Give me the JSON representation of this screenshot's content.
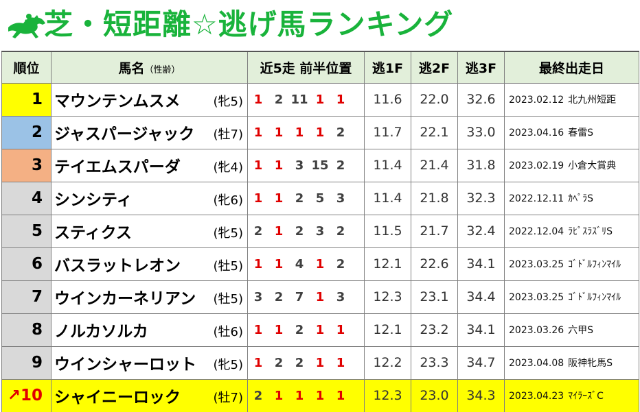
{
  "title": "芝・短距離☆逃げ馬ランキング",
  "icon": "running-horse-icon",
  "colors": {
    "title": "#19b33b",
    "header_bg": "#e2efda",
    "rank1": "#ffff00",
    "rank2": "#9bc2e6",
    "rank3": "#f4b084",
    "highlight": "#ffff00",
    "pos_red": "#e00000"
  },
  "headers": {
    "rank": "順位",
    "name": "馬名",
    "name_sub": "（性齢）",
    "positions": "近5走 前半位置",
    "f1": "逃1F",
    "f2": "逃2F",
    "f3": "逃3F",
    "last_race": "最終出走日"
  },
  "rows": [
    {
      "rank": "1",
      "arrow": "",
      "name": "マウンテンムスメ",
      "sexage": "(牝5)",
      "positions": [
        "1",
        "2",
        "11",
        "1",
        "1"
      ],
      "f1": "11.6",
      "f2": "22.0",
      "f3": "32.6",
      "date": "2023.02.12",
      "race": "北九州短距"
    },
    {
      "rank": "2",
      "arrow": "",
      "name": "ジャスパージャック",
      "sexage": "(牡7)",
      "positions": [
        "1",
        "1",
        "1",
        "1",
        "2"
      ],
      "f1": "11.7",
      "f2": "22.1",
      "f3": "33.0",
      "date": "2023.04.16",
      "race": "春雷S"
    },
    {
      "rank": "3",
      "arrow": "",
      "name": "テイエムスパーダ",
      "sexage": "(牝4)",
      "positions": [
        "1",
        "1",
        "3",
        "15",
        "2"
      ],
      "f1": "11.4",
      "f2": "21.4",
      "f3": "31.8",
      "date": "2023.02.19",
      "race": "小倉大賞典"
    },
    {
      "rank": "4",
      "arrow": "",
      "name": "シンシティ",
      "sexage": "(牝6)",
      "positions": [
        "1",
        "1",
        "2",
        "5",
        "3"
      ],
      "f1": "11.4",
      "f2": "21.8",
      "f3": "32.3",
      "date": "2022.12.11",
      "race": "ｶﾍﾟﾗS"
    },
    {
      "rank": "5",
      "arrow": "",
      "name": "スティクス",
      "sexage": "(牝5)",
      "positions": [
        "2",
        "1",
        "2",
        "3",
        "2"
      ],
      "f1": "11.5",
      "f2": "21.7",
      "f3": "32.4",
      "date": "2022.12.04",
      "race": "ﾗﾋﾟｽﾗｽﾞﾘS"
    },
    {
      "rank": "6",
      "arrow": "",
      "name": "バスラットレオン",
      "sexage": "(牡5)",
      "positions": [
        "1",
        "1",
        "4",
        "1",
        "2"
      ],
      "f1": "12.1",
      "f2": "22.6",
      "f3": "34.1",
      "date": "2023.03.25",
      "race": "ｺﾞﾄﾞﾙﾌｨﾝﾏｲﾙ"
    },
    {
      "rank": "7",
      "arrow": "",
      "name": "ウインカーネリアン",
      "sexage": "(牡5)",
      "positions": [
        "3",
        "2",
        "7",
        "1",
        "3"
      ],
      "f1": "12.3",
      "f2": "23.1",
      "f3": "34.4",
      "date": "2023.03.25",
      "race": "ｺﾞﾄﾞﾙﾌｨﾝﾏｲﾙ"
    },
    {
      "rank": "8",
      "arrow": "",
      "name": "ノルカソルカ",
      "sexage": "(牡6)",
      "positions": [
        "1",
        "1",
        "2",
        "1",
        "1"
      ],
      "f1": "12.1",
      "f2": "23.2",
      "f3": "34.1",
      "date": "2023.03.26",
      "race": "六甲S"
    },
    {
      "rank": "9",
      "arrow": "",
      "name": "ウインシャーロット",
      "sexage": "(牝5)",
      "positions": [
        "1",
        "2",
        "2",
        "1",
        "1"
      ],
      "f1": "12.2",
      "f2": "23.3",
      "f3": "34.7",
      "date": "2023.04.08",
      "race": "阪神牝馬S"
    },
    {
      "rank": "10",
      "arrow": "↗",
      "name": "シャイニーロック",
      "sexage": "(牡7)",
      "positions": [
        "2",
        "1",
        "1",
        "1",
        "1"
      ],
      "f1": "12.3",
      "f2": "23.0",
      "f3": "34.3",
      "date": "2023.04.23",
      "race": "ﾏｲﾗｰｽﾞC"
    }
  ]
}
